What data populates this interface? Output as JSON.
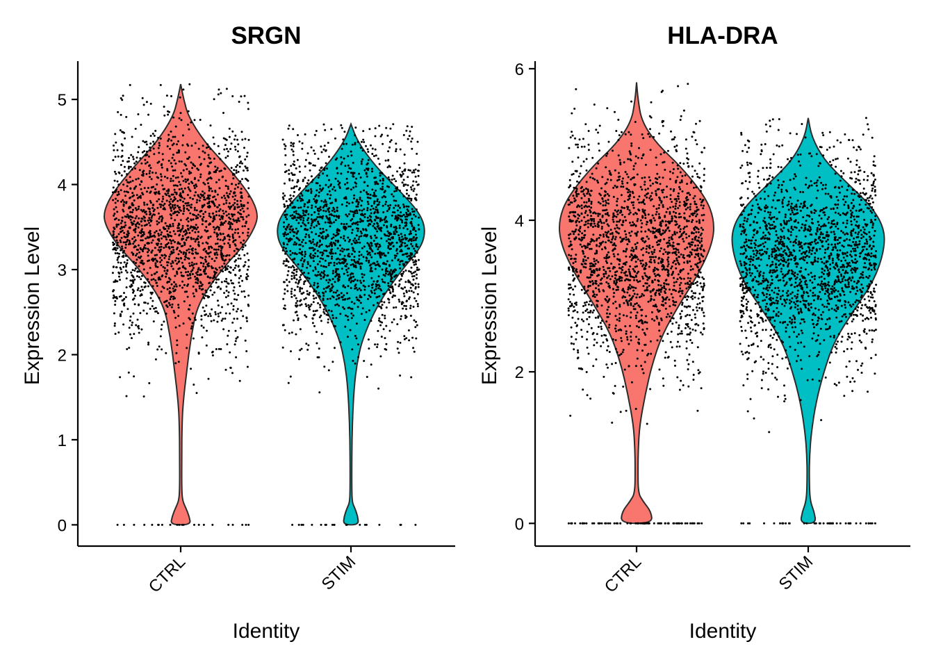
{
  "chart_data": [
    {
      "type": "violin",
      "title": "SRGN",
      "xlabel": "Identity",
      "ylabel": "Expression Level",
      "categories": [
        "CTRL",
        "STIM"
      ],
      "ylim": [
        -0.25,
        5.45
      ],
      "yticks": [
        0,
        1,
        2,
        3,
        4,
        5
      ],
      "colors": {
        "CTRL": "#F8766D",
        "STIM": "#00BFC4"
      },
      "series": [
        {
          "name": "CTRL",
          "max": 5.18,
          "zero_bulb": {
            "y_top": 0.28,
            "half_width": 0.06
          },
          "density": [
            [
              0,
              0.06
            ],
            [
              0.1,
              0.05
            ],
            [
              0.2,
              0.03
            ],
            [
              0.28,
              0.012
            ],
            [
              0.4,
              0.006
            ],
            [
              0.8,
              0.006
            ],
            [
              1.2,
              0.008
            ],
            [
              1.45,
              0.015
            ],
            [
              1.8,
              0.035
            ],
            [
              2.2,
              0.06
            ],
            [
              2.6,
              0.1
            ],
            [
              3.0,
              0.24
            ],
            [
              3.3,
              0.38
            ],
            [
              3.55,
              0.45
            ],
            [
              3.7,
              0.45
            ],
            [
              3.9,
              0.4
            ],
            [
              4.2,
              0.28
            ],
            [
              4.5,
              0.14
            ],
            [
              4.8,
              0.045
            ],
            [
              5.0,
              0.018
            ],
            [
              5.18,
              0.0
            ]
          ],
          "points": {
            "mean": 3.45,
            "sd": 0.65,
            "max": 5.18,
            "min": 1.45,
            "count": 1900,
            "zeros": 22
          }
        },
        {
          "name": "STIM",
          "max": 4.71,
          "zero_bulb": {
            "y_top": 0.26,
            "half_width": 0.045
          },
          "density": [
            [
              0,
              0.045
            ],
            [
              0.1,
              0.04
            ],
            [
              0.2,
              0.022
            ],
            [
              0.26,
              0.008
            ],
            [
              0.4,
              0.005
            ],
            [
              0.8,
              0.005
            ],
            [
              1.2,
              0.008
            ],
            [
              1.6,
              0.018
            ],
            [
              1.9,
              0.035
            ],
            [
              2.2,
              0.07
            ],
            [
              2.6,
              0.16
            ],
            [
              3.0,
              0.3
            ],
            [
              3.25,
              0.41
            ],
            [
              3.45,
              0.44
            ],
            [
              3.65,
              0.41
            ],
            [
              3.9,
              0.3
            ],
            [
              4.2,
              0.15
            ],
            [
              4.5,
              0.04
            ],
            [
              4.71,
              0.0
            ]
          ],
          "points": {
            "mean": 3.35,
            "sd": 0.6,
            "max": 4.71,
            "min": 1.3,
            "count": 1900,
            "zeros": 20
          }
        }
      ]
    },
    {
      "type": "violin",
      "title": "HLA-DRA",
      "xlabel": "Identity",
      "ylabel": "Expression Level",
      "categories": [
        "CTRL",
        "STIM"
      ],
      "ylim": [
        -0.3,
        6.1
      ],
      "yticks": [
        0,
        2,
        4,
        6
      ],
      "colors": {
        "CTRL": "#F8766D",
        "STIM": "#00BFC4"
      },
      "series": [
        {
          "name": "CTRL",
          "max": 5.82,
          "zero_bulb": {
            "y_top": 0.38,
            "half_width": 0.09
          },
          "density": [
            [
              0,
              0.09
            ],
            [
              0.15,
              0.085
            ],
            [
              0.3,
              0.035
            ],
            [
              0.4,
              0.01
            ],
            [
              0.7,
              0.008
            ],
            [
              1.0,
              0.01
            ],
            [
              1.3,
              0.018
            ],
            [
              1.7,
              0.05
            ],
            [
              2.1,
              0.09
            ],
            [
              2.5,
              0.15
            ],
            [
              2.9,
              0.25
            ],
            [
              3.3,
              0.36
            ],
            [
              3.7,
              0.44
            ],
            [
              4.0,
              0.45
            ],
            [
              4.3,
              0.4
            ],
            [
              4.7,
              0.26
            ],
            [
              5.0,
              0.12
            ],
            [
              5.3,
              0.03
            ],
            [
              5.6,
              0.008
            ],
            [
              5.82,
              0.0
            ]
          ],
          "points": {
            "mean": 3.6,
            "sd": 0.75,
            "max": 5.82,
            "min": 1.3,
            "count": 1900,
            "zeros": 75
          }
        },
        {
          "name": "STIM",
          "max": 5.35,
          "zero_bulb": {
            "y_top": 0.3,
            "half_width": 0.045
          },
          "density": [
            [
              0,
              0.045
            ],
            [
              0.15,
              0.035
            ],
            [
              0.3,
              0.01
            ],
            [
              0.6,
              0.006
            ],
            [
              0.9,
              0.008
            ],
            [
              1.2,
              0.018
            ],
            [
              1.6,
              0.045
            ],
            [
              2.0,
              0.09
            ],
            [
              2.4,
              0.15
            ],
            [
              2.8,
              0.26
            ],
            [
              3.2,
              0.38
            ],
            [
              3.6,
              0.44
            ],
            [
              3.9,
              0.44
            ],
            [
              4.2,
              0.36
            ],
            [
              4.5,
              0.22
            ],
            [
              4.8,
              0.09
            ],
            [
              5.1,
              0.02
            ],
            [
              5.35,
              0.0
            ]
          ],
          "points": {
            "mean": 3.5,
            "sd": 0.7,
            "max": 5.35,
            "min": 1.2,
            "count": 1900,
            "zeros": 45
          }
        }
      ]
    }
  ]
}
